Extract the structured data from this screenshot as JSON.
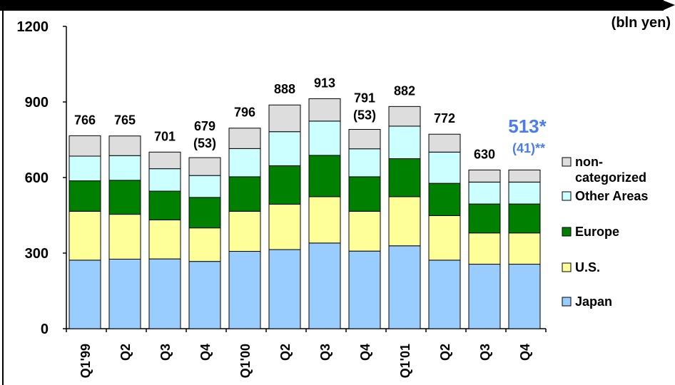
{
  "chart_data": {
    "type": "bar",
    "stacked": true,
    "unit_label": "(bln yen)",
    "title": "",
    "xlabel": "",
    "ylabel": "",
    "ylim": [
      0,
      1200
    ],
    "yticks": [
      0,
      300,
      600,
      900,
      1200
    ],
    "grid": false,
    "legend_position": "right",
    "categories": [
      "Q1'99",
      "Q2",
      "Q3",
      "Q4",
      "Q1'00",
      "Q2",
      "Q3",
      "Q4",
      "Q1'01",
      "Q2",
      "Q3",
      "Q4"
    ],
    "series": [
      {
        "name": "Japan",
        "color": "#99CCFF",
        "values": [
          272,
          276,
          277,
          267,
          307,
          314,
          340,
          308,
          329,
          272,
          256,
          256
        ]
      },
      {
        "name": "U.S.",
        "color": "#FFFF99",
        "values": [
          194,
          178,
          155,
          133,
          159,
          180,
          184,
          158,
          195,
          177,
          124,
          124
        ]
      },
      {
        "name": "Europe",
        "color": "#008000",
        "values": [
          121,
          135,
          114,
          121,
          137,
          153,
          164,
          137,
          151,
          128,
          115,
          115
        ]
      },
      {
        "name": "Other Areas",
        "color": "#CCFFFF",
        "values": [
          98,
          98,
          89,
          87,
          112,
          135,
          136,
          111,
          129,
          124,
          87,
          87
        ]
      },
      {
        "name": "non-categorized",
        "color": "#DDDDDD",
        "values": [
          81,
          78,
          66,
          71,
          81,
          106,
          89,
          77,
          78,
          71,
          48,
          48
        ]
      }
    ],
    "totals": [
      "766",
      "765",
      "701",
      "679",
      "796",
      "888",
      "913",
      "791",
      "882",
      "772",
      "630",
      ""
    ],
    "sub_labels": [
      "",
      "",
      "",
      "(53)",
      "",
      "",
      "",
      "(53)",
      "",
      "",
      "",
      ""
    ],
    "annotation": {
      "main": "513*",
      "sub": "(41)**",
      "color": "#4A7BEF"
    },
    "legend": [
      {
        "lines": [
          "non-",
          "categorized"
        ],
        "color": "#DDDDDD"
      },
      {
        "lines": [
          "Other Areas"
        ],
        "color": "#CCFFFF"
      },
      {
        "lines": [
          "Europe"
        ],
        "color": "#008000"
      },
      {
        "lines": [
          "U.S."
        ],
        "color": "#FFFF99"
      },
      {
        "lines": [
          "Japan"
        ],
        "color": "#99CCFF"
      }
    ]
  }
}
